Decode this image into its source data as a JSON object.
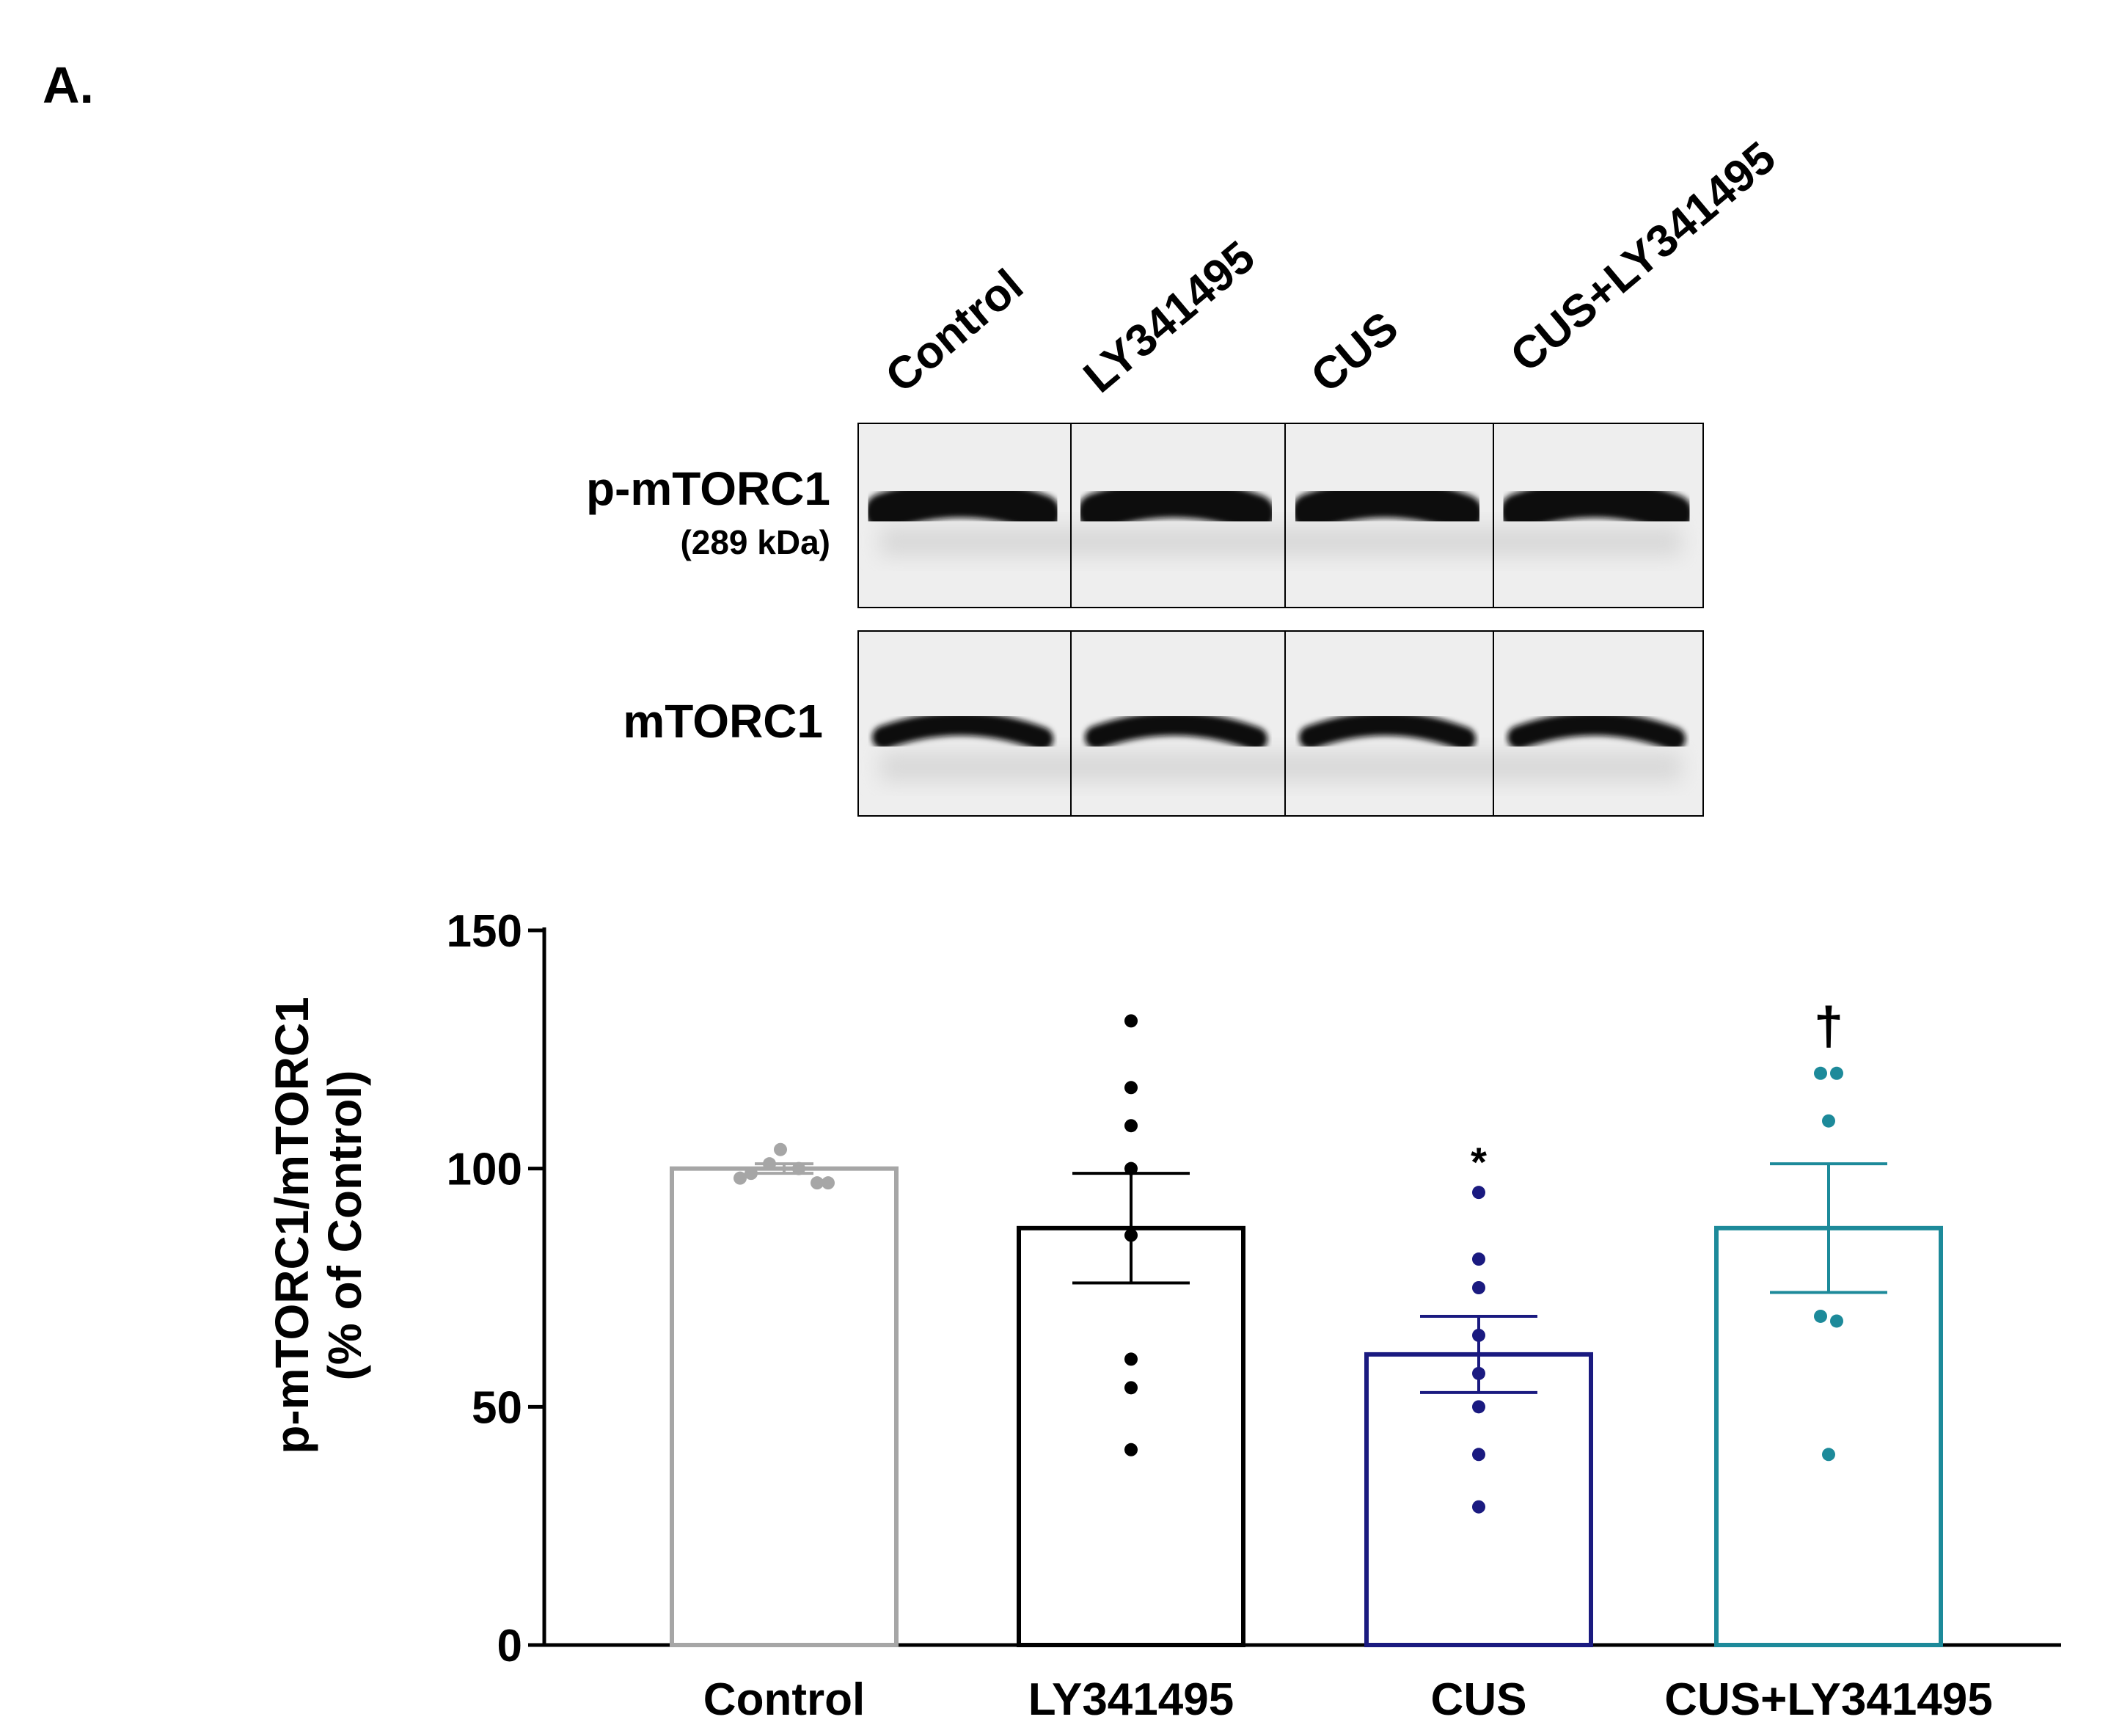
{
  "panel_label": "A.",
  "blot": {
    "lanes": [
      "Control",
      "LY341495",
      "CUS",
      "CUS+LY341495"
    ],
    "rows": [
      {
        "name": "p-mTORC1",
        "sublabel": "(289 kDa)"
      },
      {
        "name": "mTORC1",
        "sublabel": ""
      }
    ]
  },
  "significance": {
    "CUS": "*",
    "CUS+LY341495": "†"
  },
  "colors": {
    "Control": "#a6a6a6",
    "LY341495": "#000000",
    "CUS": "#1a1a80",
    "CUS+LY341495": "#1d8a9a"
  },
  "chart_data": {
    "type": "bar",
    "title": "",
    "xlabel": "",
    "ylabel": "p-mTORC1/mTORC1",
    "ylabel_sub": "(% of Control)",
    "ylim": [
      0,
      150
    ],
    "yticks": [
      0,
      50,
      100,
      150
    ],
    "categories": [
      "Control",
      "LY341495",
      "CUS",
      "CUS+LY341495"
    ],
    "values": [
      100,
      87.5,
      61,
      87.5
    ],
    "sem": [
      1,
      11.5,
      8,
      13.5
    ],
    "points": [
      [
        104,
        101,
        100,
        99,
        97,
        98,
        97
      ],
      [
        131,
        117,
        109,
        100,
        86,
        60,
        54,
        41
      ],
      [
        95,
        81,
        75,
        65,
        57,
        50,
        40,
        29
      ],
      [
        120,
        120,
        110,
        69,
        68,
        40
      ]
    ]
  }
}
